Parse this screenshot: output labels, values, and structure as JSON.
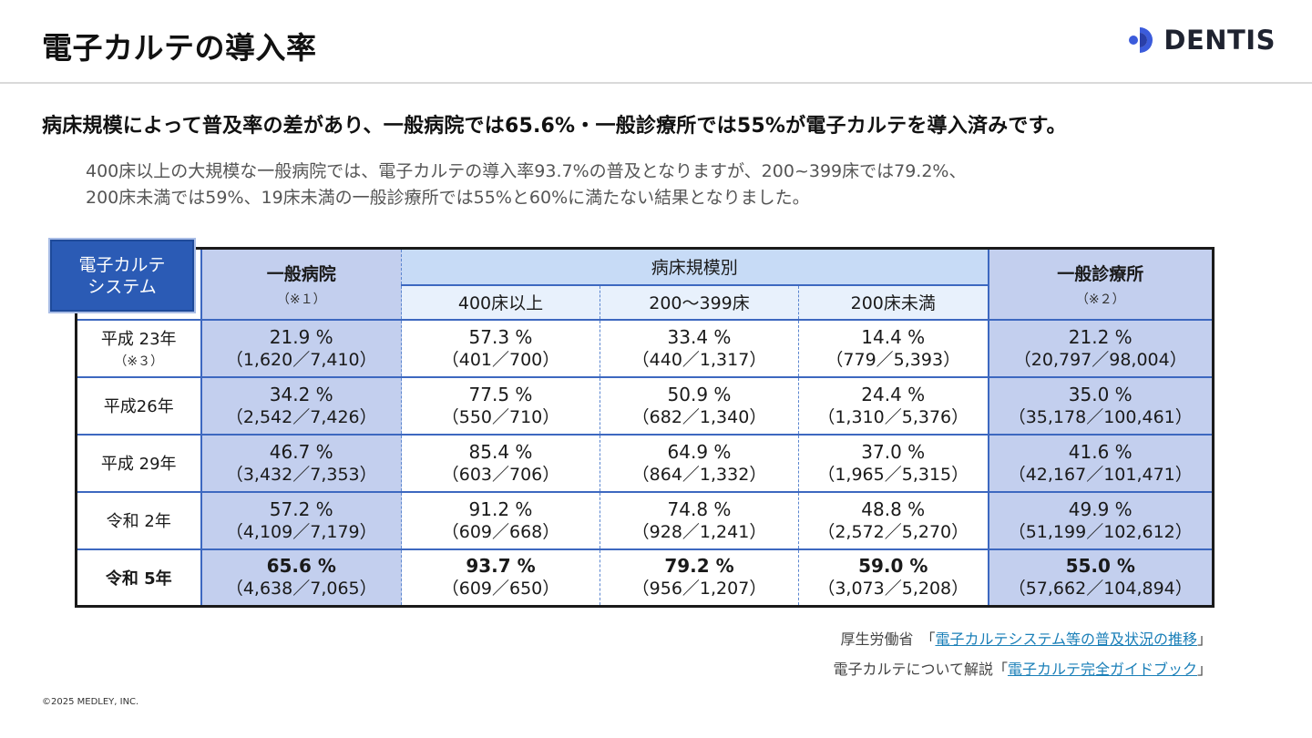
{
  "header": {
    "title": "電子カルテの導入率",
    "logo_text": "DENTIS",
    "logo_color": "#3b5bdb"
  },
  "headline": "病床規模によって普及率の差があり、一般病院では65.6%・一般診療所では55%が電子カルテを導入済みです。",
  "description": {
    "line1": "400床以上の大規模な一般病院では、電子カルテの導入率93.7%の普及となりますが、200~399床では79.2%、",
    "line2": "200床未満では59%、19床未満の一般診療所では55%と60%に満たない結果となりました。"
  },
  "badge": {
    "line1": "電子カルテ",
    "line2": "システム"
  },
  "table": {
    "general_header": "一般病院",
    "general_note": "（※１）",
    "scale_header": "病床規模別",
    "scale_sub": [
      "400床以上",
      "200～399床",
      "200床未満"
    ],
    "clinic_header": "一般診療所",
    "clinic_note": "（※２）",
    "rows": [
      {
        "year": "平成 23年",
        "year_note": "（※３）",
        "general": {
          "pct": "21.9 %",
          "frac": "（1,620／7,410）"
        },
        "s400": {
          "pct": "57.3 %",
          "frac": "（401／700）"
        },
        "s200": {
          "pct": "33.4 %",
          "frac": "（440／1,317）"
        },
        "sunder": {
          "pct": "14.4 %",
          "frac": "（779／5,393）"
        },
        "clinic": {
          "pct": "21.2 %",
          "frac": "（20,797／98,004）"
        }
      },
      {
        "year": "平成26年",
        "year_note": "",
        "general": {
          "pct": "34.2 %",
          "frac": "（2,542／7,426）"
        },
        "s400": {
          "pct": "77.5 %",
          "frac": "（550／710）"
        },
        "s200": {
          "pct": "50.9 %",
          "frac": "（682／1,340）"
        },
        "sunder": {
          "pct": "24.4 %",
          "frac": "（1,310／5,376）"
        },
        "clinic": {
          "pct": "35.0 %",
          "frac": "（35,178／100,461）"
        }
      },
      {
        "year": "平成 29年",
        "year_note": "",
        "general": {
          "pct": "46.7 %",
          "frac": "（3,432／7,353）"
        },
        "s400": {
          "pct": "85.4 %",
          "frac": "（603／706）"
        },
        "s200": {
          "pct": "64.9 %",
          "frac": "（864／1,332）"
        },
        "sunder": {
          "pct": "37.0 %",
          "frac": "（1,965／5,315）"
        },
        "clinic": {
          "pct": "41.6 %",
          "frac": "（42,167／101,471）"
        }
      },
      {
        "year": "令和 2年",
        "year_note": "",
        "general": {
          "pct": "57.2 %",
          "frac": "（4,109／7,179）"
        },
        "s400": {
          "pct": "91.2 %",
          "frac": "（609／668）"
        },
        "s200": {
          "pct": "74.8 %",
          "frac": "（928／1,241）"
        },
        "sunder": {
          "pct": "48.8 %",
          "frac": "（2,572／5,270）"
        },
        "clinic": {
          "pct": "49.9 %",
          "frac": "（51,199／102,612）"
        }
      },
      {
        "year": "令和 5年",
        "year_note": "",
        "general": {
          "pct": "65.6 %",
          "frac": "（4,638／7,065）"
        },
        "s400": {
          "pct": "93.7 %",
          "frac": "（609／650）"
        },
        "s200": {
          "pct": "79.2 %",
          "frac": "（956／1,207）"
        },
        "sunder": {
          "pct": "59.0 %",
          "frac": "（3,073／5,208）"
        },
        "clinic": {
          "pct": "55.0 %",
          "frac": "（57,662／104,894）"
        }
      }
    ]
  },
  "sources": {
    "s1_prefix": "厚生労働省　「",
    "s1_link": "電子カルテシステム等の普及状況の推移",
    "s1_suffix": "」",
    "s2_prefix": "電子カルテについて解説「",
    "s2_link": "電子カルテ完全ガイドブック",
    "s2_suffix": "」"
  },
  "copyright": "©2025 MEDLEY, INC."
}
